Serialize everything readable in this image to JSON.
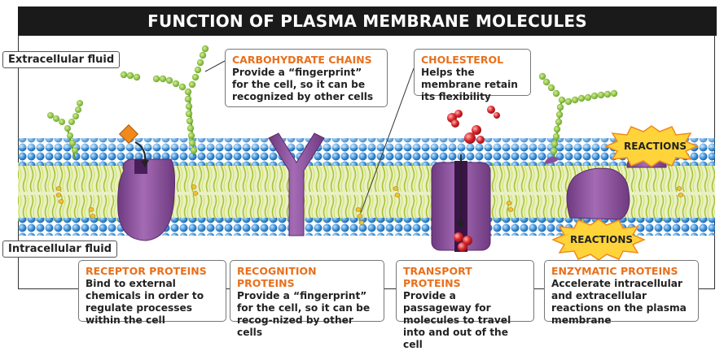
{
  "title": "FUNCTION OF PLASMA MEMBRANE MOLECULES",
  "labels": {
    "extracellular": "Extracellular fluid",
    "intracellular": "Intracellular fluid"
  },
  "callouts": {
    "carbohydrate": {
      "heading": "CARBOHYDRATE CHAINS",
      "body": "Provide a “fingerprint” for the cell, so it can be recognized by other cells"
    },
    "cholesterol": {
      "heading": "CHOLESTEROL",
      "body": "Helps the membrane retain its flexibility"
    },
    "receptor": {
      "heading": "RECEPTOR PROTEINS",
      "body": "Bind to external chemicals in order to regulate processes within the cell"
    },
    "recognition": {
      "heading": "RECOGNITION PROTEINS",
      "body": "Provide a “fingerprint” for the cell, so it can be recog-nized by other cells"
    },
    "transport": {
      "heading": "TRANSPORT PROTEINS",
      "body": "Provide a passageway for molecules to travel into and out of the cell"
    },
    "enzymatic": {
      "heading": "ENZYMATIC PROTEINS",
      "body": "Accelerate intracellular and extracellular reactions on the plasma membrane"
    }
  },
  "reactions": {
    "top": "REACTIONS",
    "bottom": "REACTIONS"
  },
  "colors": {
    "heading_orange": "#e8701c",
    "head_blue": "#3a8fd6",
    "protein_purple": "#8a4f9a",
    "tail_green": "#b7cc3a",
    "sugar_green": "#7fb532",
    "molecule_red": "#d9262b",
    "burst_yellow": "#ffd43b"
  }
}
